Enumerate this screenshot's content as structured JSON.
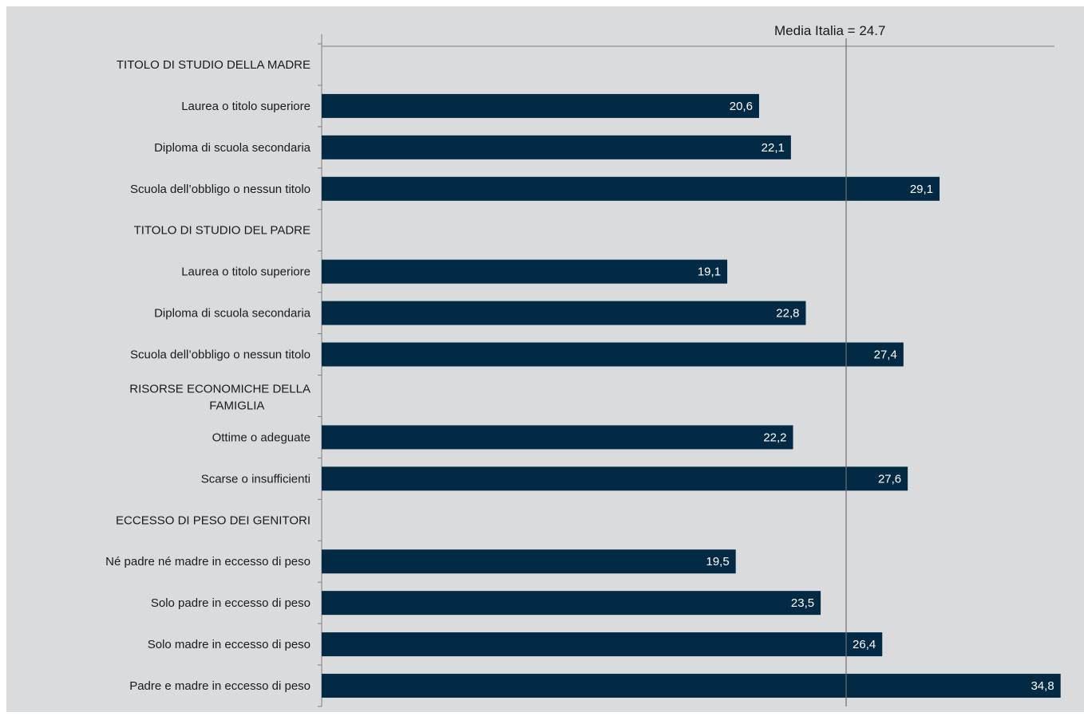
{
  "chart_data": {
    "type": "bar",
    "orientation": "horizontal",
    "title": "",
    "xlabel": "",
    "ylabel": "",
    "grid": false,
    "legend": "none",
    "xlim": [
      0,
      36
    ],
    "reference_line": {
      "value": 24.7,
      "label": "Media Italia = 24.7"
    },
    "categories": [
      "TITOLO DI STUDIO DELLA MADRE",
      "Laurea o titolo superiore",
      "Diploma di scuola secondaria",
      "Scuola dell’obbligo o nessun titolo",
      "TITOLO DI STUDIO DEL PADRE",
      "Laurea o titolo superiore",
      "Diploma di scuola secondaria",
      "Scuola dell’obbligo o nessun titolo",
      "RISORSE ECONOMICHE DELLA FAMIGLIA",
      "Ottime o adeguate",
      "Scarse o insufficienti",
      "ECCESSO DI PESO DEI GENITORI",
      "Né padre né madre in eccesso di peso",
      "Solo padre in eccesso di peso",
      "Solo madre in eccesso di peso",
      "Padre e madre in eccesso di peso"
    ],
    "values": [
      null,
      20.6,
      22.1,
      29.1,
      null,
      19.1,
      22.8,
      27.4,
      null,
      22.2,
      27.6,
      null,
      19.5,
      23.5,
      26.4,
      34.8
    ],
    "value_labels": [
      "",
      "20,6",
      "22,1",
      "29,1",
      "",
      "19,1",
      "22,8",
      "27,4",
      "",
      "22,2",
      "27,6",
      "",
      "19,5",
      "23,5",
      "26,4",
      "34,8"
    ],
    "bar_color": "#022a45",
    "label_color": "#ffffff",
    "background_color": "#dadbdd",
    "axis_color": "#7f7f7f"
  }
}
